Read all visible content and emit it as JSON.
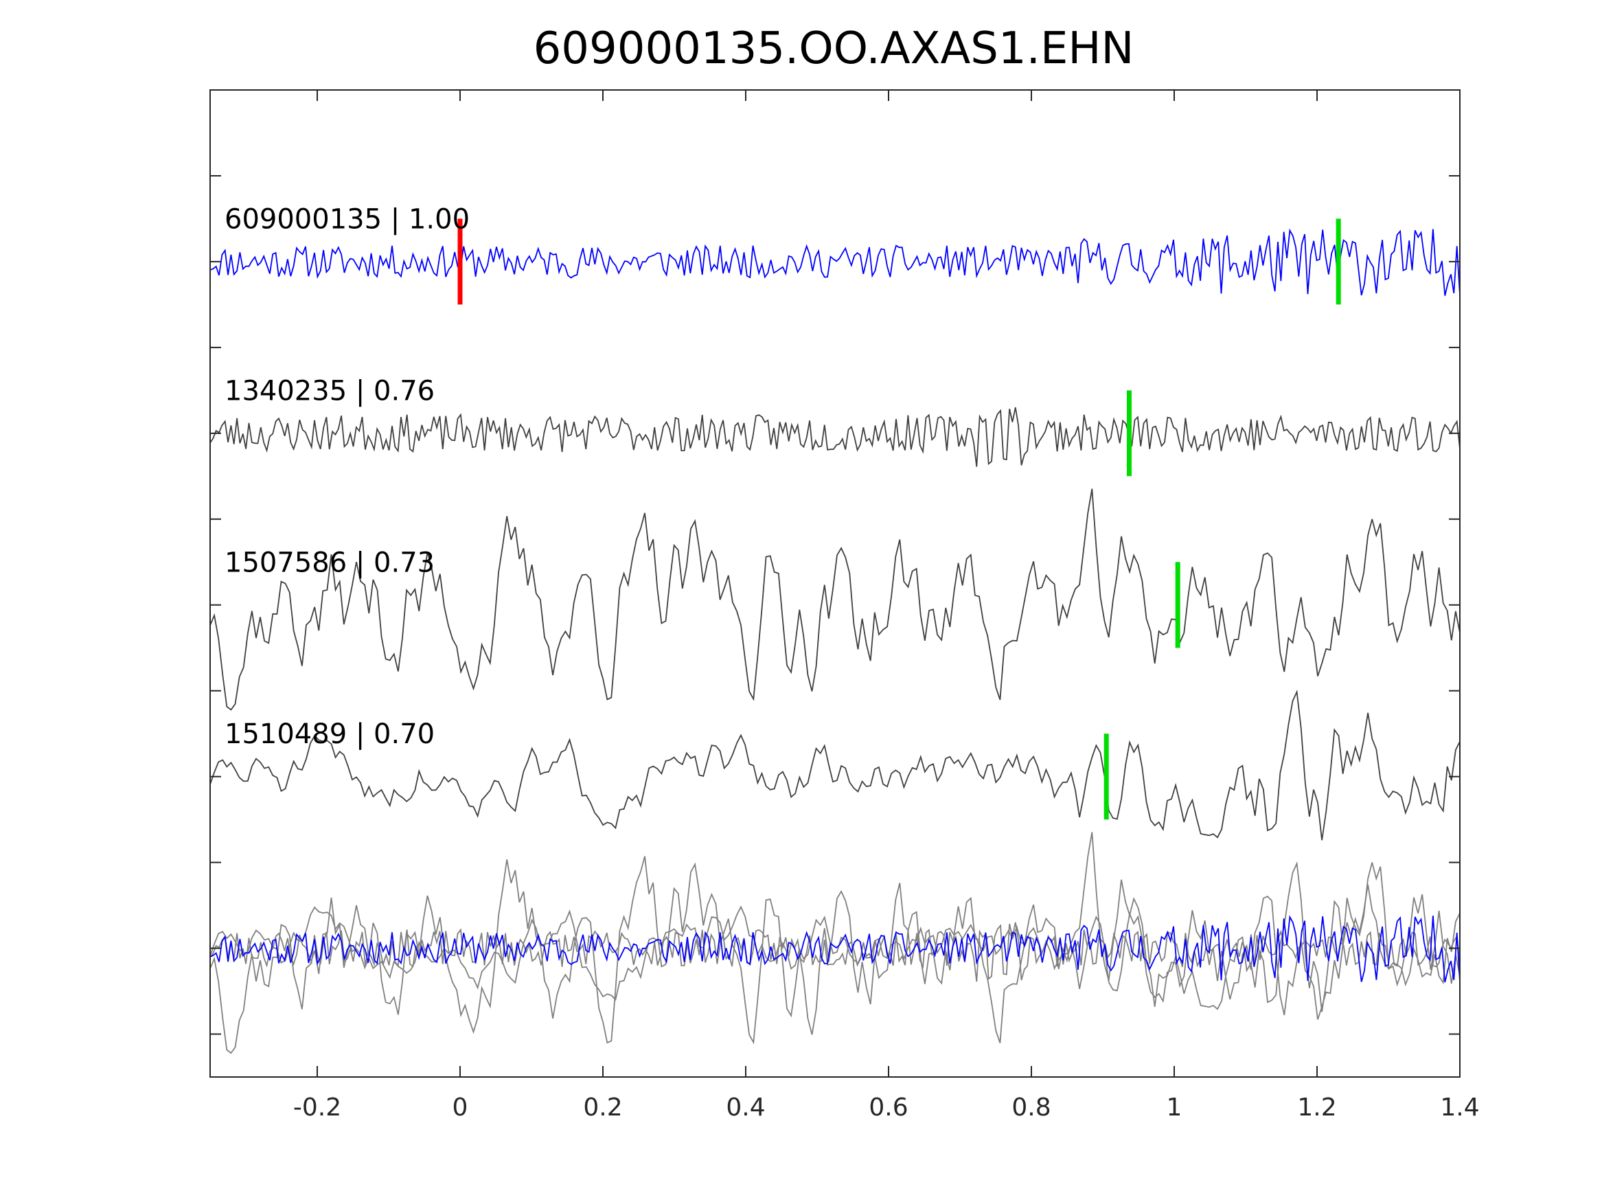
{
  "chart_data": {
    "type": "line",
    "title": "609000135.OO.AXAS1.EHN",
    "xlabel": "",
    "ylabel": "",
    "xlim": [
      -0.35,
      1.4
    ],
    "x_ticks": [
      -0.2,
      0,
      0.2,
      0.4,
      0.6,
      0.8,
      1,
      1.2,
      1.4
    ],
    "x_tick_labels": [
      "-0.2",
      "0",
      "0.2",
      "0.4",
      "0.6",
      "0.8",
      "1",
      "1.2",
      "1.4"
    ],
    "ylim": [
      0,
      5.75
    ],
    "y_ticks": [
      0.25,
      0.75,
      1.25,
      1.75,
      2.25,
      2.75,
      3.25,
      3.75,
      4.25,
      4.75,
      5.25
    ],
    "y_tick_labels": [],
    "grid": false,
    "legend": "none",
    "colors": {
      "template_trace": "#0000ff",
      "match_trace": "#404040",
      "overlay_match": "#808080",
      "p_pick": "#ff0000",
      "s_pick": "#00dd00",
      "axes": "#262626"
    },
    "series": [
      {
        "label": "609000135 | 1.00",
        "id": "609000135",
        "cc": 1.0,
        "color": "#0000ff",
        "baseline": 4.75,
        "pick_p": 0.0,
        "pick_s": 1.23
      },
      {
        "label": "1340235 | 0.76",
        "id": "1340235",
        "cc": 0.76,
        "color": "#404040",
        "baseline": 3.75,
        "pick_s": 0.937
      },
      {
        "label": "1507586 | 0.73",
        "id": "1507586",
        "cc": 0.73,
        "color": "#404040",
        "baseline": 2.75,
        "pick_s": 1.005
      },
      {
        "label": "1510489 | 0.70",
        "id": "1510489",
        "cc": 0.7,
        "color": "#404040",
        "baseline": 1.75,
        "pick_s": 0.905
      }
    ],
    "overlay": {
      "baseline": 0.75,
      "note": "all traces superimposed"
    }
  }
}
